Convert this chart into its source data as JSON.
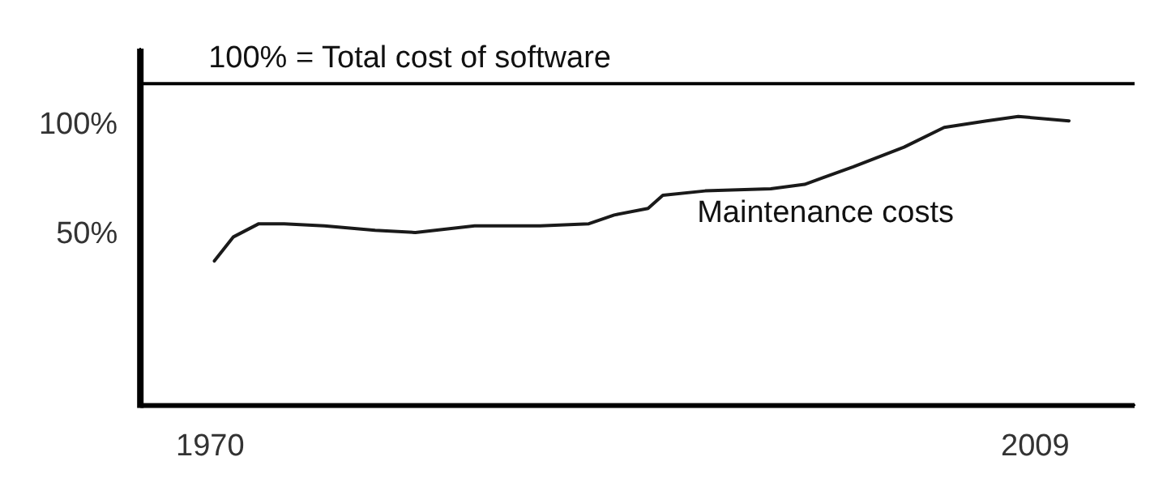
{
  "chart_data": {
    "type": "line",
    "x": [
      1970.2,
      1971.1,
      1972.3,
      1973.5,
      1975.4,
      1977.8,
      1979.7,
      1982.5,
      1985.6,
      1987.9,
      1989.1,
      1990.7,
      1991.4,
      1993.4,
      1996.5,
      1998.1,
      2000.4,
      2002.8,
      2004.7,
      2006.7,
      2008.2,
      2010.6
    ],
    "series": [
      {
        "name": "Maintenance costs",
        "color": "#1a1a1a",
        "values": [
          38,
          49,
          55,
          55,
          54,
          52,
          51,
          54,
          54,
          55,
          59,
          62,
          68,
          70,
          71,
          73,
          81,
          90,
          99,
          102,
          104,
          102
        ]
      }
    ],
    "xlim": [
      1966.7,
      2013.7
    ],
    "xticks": [
      1970,
      2009
    ],
    "ylim": [
      -28,
      135
    ],
    "yticks": [
      {
        "value": 50,
        "label": "50%"
      },
      {
        "value": 100,
        "label": "100%"
      }
    ],
    "ref_lines": [
      {
        "axis": "y",
        "value": 119,
        "label": "100% = Total cost of software",
        "color": "#000000"
      }
    ],
    "grid": false,
    "legend": false,
    "marker": "none",
    "line_style": "solid"
  }
}
